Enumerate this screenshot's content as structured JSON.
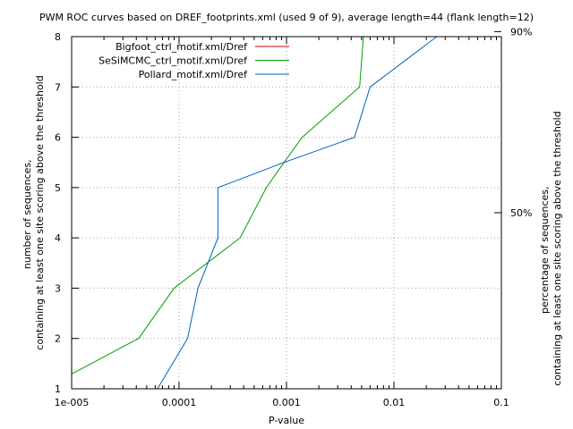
{
  "chart_data": {
    "type": "line",
    "title": "PWM ROC curves based on DREF_footprints.xml (used 9 of 9), average length=44 (flank length=12)",
    "xlabel": "P-value",
    "ylabel": [
      "number of sequences,",
      "containing at least one site scoring above the threshold"
    ],
    "y2label": [
      "percentage of sequences,",
      "containing at least one site scoring above the threshold"
    ],
    "x_scale": "log",
    "xlim": [
      1e-05,
      0.1
    ],
    "ylim": [
      1,
      8
    ],
    "x_ticks": [
      {
        "value": 1e-05,
        "label": "1e-005"
      },
      {
        "value": 0.0001,
        "label": "0.0001"
      },
      {
        "value": 0.001,
        "label": "0.001"
      },
      {
        "value": 0.01,
        "label": "0.01"
      },
      {
        "value": 0.1,
        "label": "0.1"
      }
    ],
    "y_ticks": [
      {
        "value": 1,
        "label": "1"
      },
      {
        "value": 2,
        "label": "2"
      },
      {
        "value": 3,
        "label": "3"
      },
      {
        "value": 4,
        "label": "4"
      },
      {
        "value": 5,
        "label": "5"
      },
      {
        "value": 6,
        "label": "6"
      },
      {
        "value": 7,
        "label": "7"
      },
      {
        "value": 8,
        "label": "8"
      }
    ],
    "y2_ticks": [
      {
        "value": 4.5,
        "label": "50%"
      },
      {
        "value": 8.1,
        "label": "90%"
      }
    ],
    "grid": true,
    "legend_position": "top-left",
    "series": [
      {
        "name": "Bigfoot_ctrl_motif.xml/Dref",
        "color": "#cc0000",
        "points": []
      },
      {
        "name": "SeSiMCMC_ctrl_motif.xml/Dref",
        "color": "#00a000",
        "points": [
          [
            5.5e-06,
            1
          ],
          [
            4.2e-05,
            2
          ],
          [
            9e-05,
            3
          ],
          [
            0.00037,
            4
          ],
          [
            0.00065,
            5
          ],
          [
            0.00095,
            5.5
          ],
          [
            0.0014,
            6
          ],
          [
            0.0048,
            7
          ],
          [
            0.0052,
            8
          ],
          [
            0.0053,
            8.1
          ]
        ]
      },
      {
        "name": "Pollard_motif.xml/Dref",
        "color": "#0060c0",
        "points": [
          [
            6.3e-05,
            1
          ],
          [
            0.00012,
            2
          ],
          [
            0.00015,
            3
          ],
          [
            0.00023,
            4
          ],
          [
            0.00023,
            5
          ],
          [
            0.00095,
            5.5
          ],
          [
            0.0043,
            6
          ],
          [
            0.006,
            7
          ],
          [
            0.025,
            8
          ],
          [
            0.03,
            8.1
          ]
        ]
      }
    ]
  }
}
